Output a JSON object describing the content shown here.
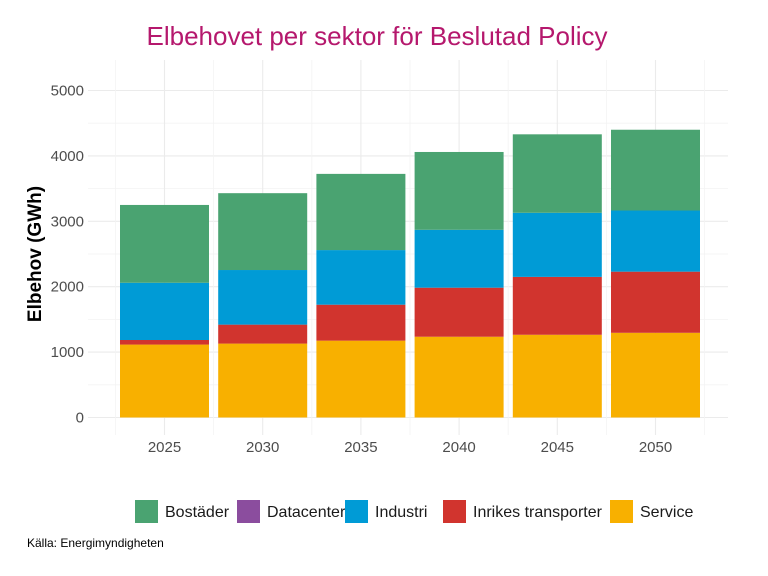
{
  "chart_data": {
    "type": "bar",
    "stacked": true,
    "title": "Elbehovet per sektor för Beslutad Policy",
    "xlabel": "",
    "ylabel": "Elbehov (GWh)",
    "caption": "Källa: Energimyndigheten",
    "categories": [
      "2025",
      "2030",
      "2035",
      "2040",
      "2045",
      "2050"
    ],
    "ylim": [
      0,
      5300
    ],
    "yticks": [
      0,
      1000,
      2000,
      3000,
      4000,
      5000
    ],
    "ytick_labels": [
      "0",
      "1000",
      "2000",
      "3000",
      "4000",
      "5000"
    ],
    "grid": true,
    "legend_position": "bottom",
    "stack_order_bottom_to_top": [
      "Service",
      "Inrikes transporter",
      "Datacenter",
      "Industri",
      "Bostäder"
    ],
    "series": [
      {
        "name": "Bostäder",
        "color": "#4aa371",
        "values": [
          1190,
          1175,
          1165,
          1190,
          1200,
          1235
        ]
      },
      {
        "name": "Datacenter",
        "color": "#8b4d9e",
        "values": [
          0,
          0,
          0,
          0,
          0,
          0
        ]
      },
      {
        "name": "Industri",
        "color": "#009bd6",
        "values": [
          875,
          835,
          835,
          885,
          980,
          935
        ]
      },
      {
        "name": "Inrikes transporter",
        "color": "#d1342e",
        "values": [
          70,
          290,
          550,
          750,
          885,
          935
        ]
      },
      {
        "name": "Service",
        "color": "#f8b000",
        "values": [
          1115,
          1130,
          1175,
          1235,
          1265,
          1295
        ]
      }
    ],
    "legend": [
      {
        "label": "Bostäder",
        "color": "#4aa371"
      },
      {
        "label": "Datacenter",
        "color": "#8b4d9e"
      },
      {
        "label": "Industri",
        "color": "#009bd6"
      },
      {
        "label": "Inrikes transporter",
        "color": "#d1342e"
      },
      {
        "label": "Service",
        "color": "#f8b000"
      }
    ]
  }
}
